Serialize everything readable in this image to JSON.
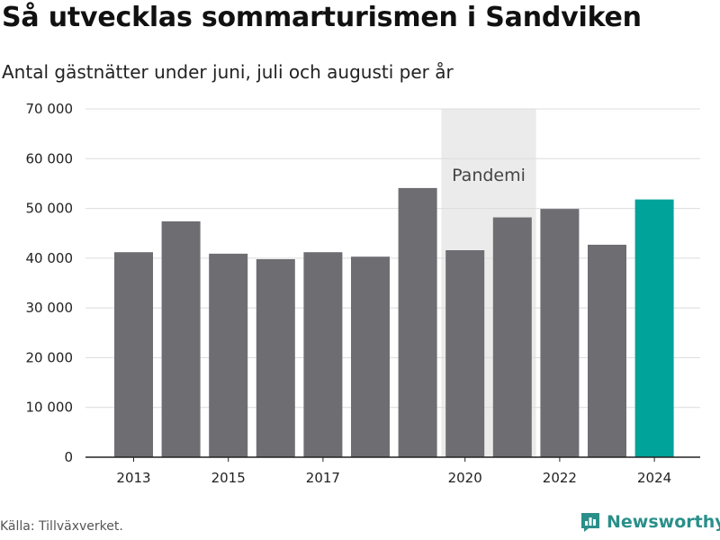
{
  "title": "Så utvecklas sommarturismen i Sandviken",
  "subtitle": "Antal gästnätter under juni, juli och augusti per år",
  "source": "Källa: Tillväxverket.",
  "brand": {
    "name": "Newsworthy",
    "icon": "newsworthy-logo-icon"
  },
  "colors": {
    "bar": "#6e6d72",
    "highlight": "#00a39a",
    "band": "#ebebeb",
    "brand": "#2a8f8a"
  },
  "chart_data": {
    "type": "bar",
    "categories": [
      "2013",
      "2014",
      "2015",
      "2016",
      "2017",
      "2018",
      "2019",
      "2020",
      "2021",
      "2022",
      "2023",
      "2024"
    ],
    "values": [
      41200,
      47400,
      40900,
      39800,
      41200,
      40300,
      54100,
      41600,
      48200,
      49900,
      42700,
      51800
    ],
    "highlight": "2024",
    "x_tick_labels": [
      "2013",
      "2015",
      "2017",
      "2020",
      "2022",
      "2024"
    ],
    "y_tick_labels": [
      "0",
      "10 000",
      "20 000",
      "30 000",
      "40 000",
      "50 000",
      "60 000",
      "70 000"
    ],
    "ylim": [
      0,
      70000
    ],
    "y_ticks": [
      0,
      10000,
      20000,
      30000,
      40000,
      50000,
      60000,
      70000
    ],
    "grid": true,
    "annotation": {
      "label": "Pandemi",
      "from": "2020",
      "to": "2021"
    },
    "xlabel": "",
    "ylabel": ""
  }
}
